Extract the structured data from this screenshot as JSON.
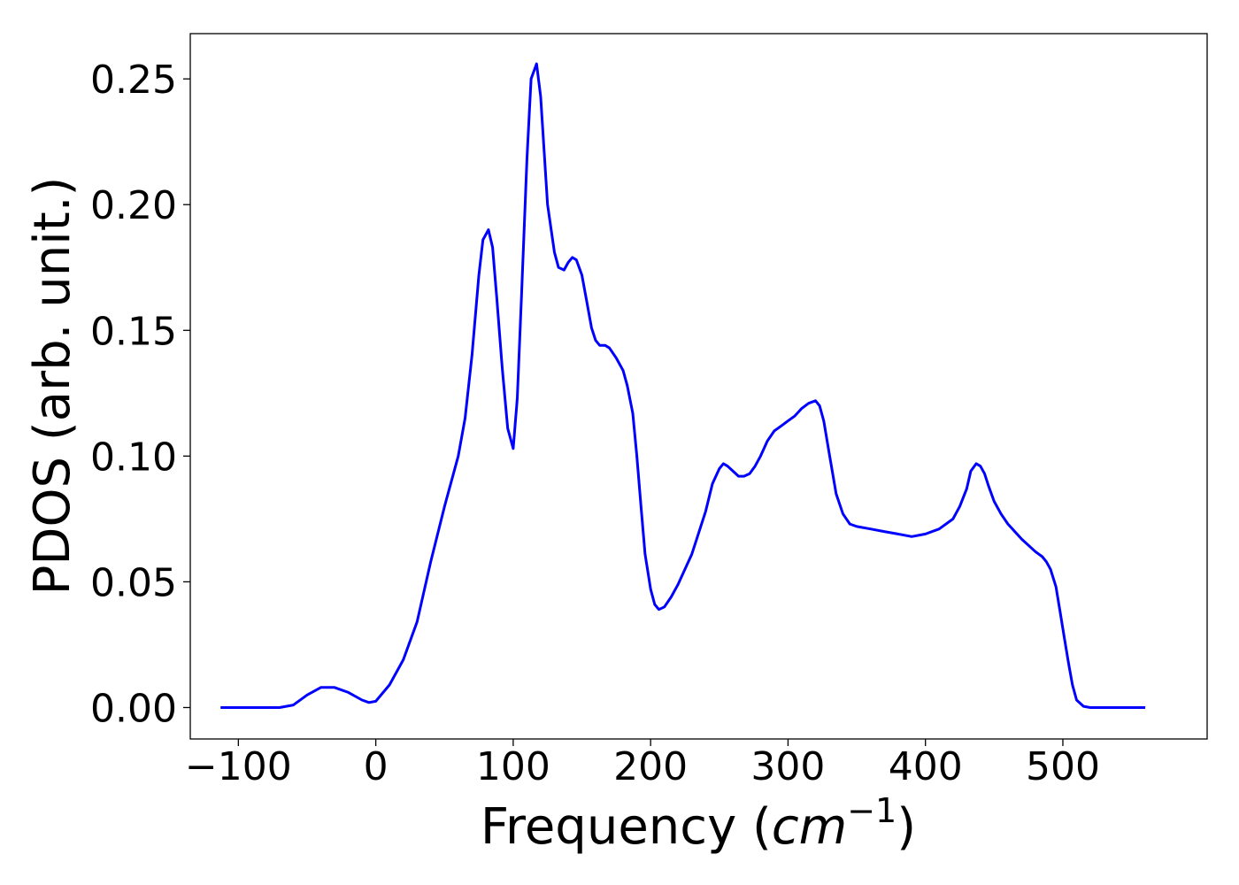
{
  "chart_data": {
    "type": "line",
    "title": "",
    "xlabel": "Frequency",
    "xlabel_unit_base": "cm",
    "xlabel_unit_exp": "−1",
    "ylabel": "PDOS (arb. unit.)",
    "xlim": [
      -135,
      605
    ],
    "ylim": [
      -0.0125,
      0.268
    ],
    "xticks": [
      -100,
      0,
      100,
      200,
      300,
      400,
      500
    ],
    "xtick_labels": [
      "−100",
      "0",
      "100",
      "200",
      "300",
      "400",
      "500"
    ],
    "yticks": [
      0.0,
      0.05,
      0.1,
      0.15,
      0.2,
      0.25
    ],
    "ytick_labels": [
      "0.00",
      "0.05",
      "0.10",
      "0.15",
      "0.20",
      "0.25"
    ],
    "grid": false,
    "legend": "none",
    "series": [
      {
        "color": "#0000ff",
        "x": [
          -113,
          -70,
          -60,
          -50,
          -40,
          -30,
          -20,
          -10,
          -5,
          0,
          10,
          20,
          30,
          40,
          50,
          60,
          65,
          70,
          75,
          78,
          82,
          85,
          88,
          92,
          96,
          100,
          103,
          106,
          110,
          113,
          117,
          120,
          125,
          130,
          133,
          137,
          140,
          143,
          146,
          150,
          153,
          157,
          160,
          163,
          167,
          170,
          175,
          180,
          183,
          187,
          190,
          193,
          196,
          200,
          203,
          206,
          210,
          215,
          220,
          230,
          240,
          245,
          250,
          253,
          256,
          260,
          264,
          268,
          272,
          276,
          280,
          285,
          290,
          295,
          300,
          305,
          310,
          315,
          320,
          323,
          326,
          330,
          335,
          340,
          345,
          350,
          360,
          370,
          380,
          390,
          400,
          410,
          420,
          425,
          430,
          433,
          437,
          440,
          443,
          446,
          450,
          455,
          460,
          470,
          480,
          485,
          488,
          491,
          495,
          498,
          501,
          504,
          507,
          510,
          515,
          520,
          560
        ],
        "values": [
          0.0,
          0.0,
          0.001,
          0.005,
          0.008,
          0.008,
          0.006,
          0.003,
          0.002,
          0.0025,
          0.009,
          0.019,
          0.034,
          0.058,
          0.08,
          0.1,
          0.115,
          0.14,
          0.172,
          0.186,
          0.19,
          0.183,
          0.163,
          0.135,
          0.111,
          0.103,
          0.123,
          0.163,
          0.218,
          0.25,
          0.256,
          0.243,
          0.2,
          0.181,
          0.175,
          0.174,
          0.177,
          0.179,
          0.178,
          0.172,
          0.163,
          0.151,
          0.146,
          0.144,
          0.144,
          0.143,
          0.139,
          0.134,
          0.128,
          0.117,
          0.1,
          0.08,
          0.061,
          0.047,
          0.041,
          0.039,
          0.04,
          0.044,
          0.049,
          0.061,
          0.078,
          0.089,
          0.095,
          0.097,
          0.096,
          0.094,
          0.092,
          0.092,
          0.093,
          0.096,
          0.1,
          0.106,
          0.11,
          0.112,
          0.114,
          0.116,
          0.119,
          0.121,
          0.122,
          0.12,
          0.114,
          0.101,
          0.085,
          0.077,
          0.073,
          0.072,
          0.071,
          0.07,
          0.069,
          0.068,
          0.069,
          0.071,
          0.075,
          0.08,
          0.087,
          0.094,
          0.097,
          0.096,
          0.093,
          0.088,
          0.082,
          0.077,
          0.073,
          0.067,
          0.062,
          0.06,
          0.058,
          0.055,
          0.048,
          0.038,
          0.028,
          0.018,
          0.009,
          0.003,
          0.0005,
          0.0,
          0.0
        ]
      }
    ]
  }
}
